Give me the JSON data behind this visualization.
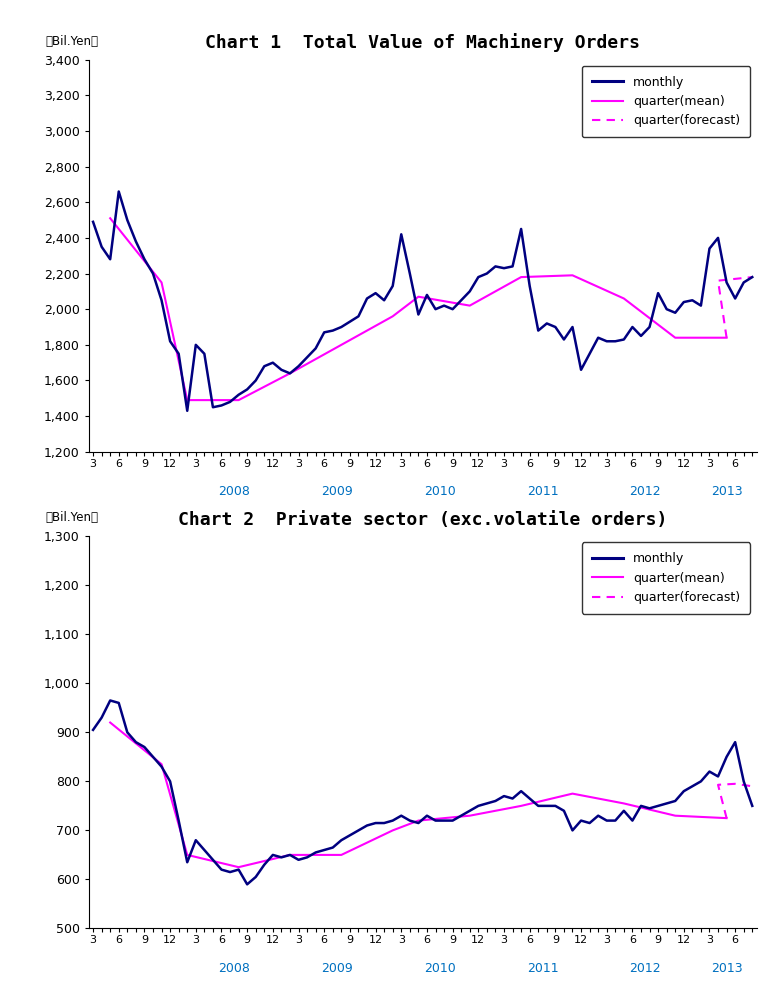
{
  "chart1_title": "Chart 1  Total Value of Machinery Orders",
  "chart2_title": "Chart 2  Private sector (exc.volatile orders)",
  "ylabel": "（Bil.Yen）",
  "chart1_monthly": [
    2490,
    2350,
    2280,
    2660,
    2500,
    2380,
    2280,
    2200,
    2050,
    1820,
    1750,
    1430,
    1800,
    1750,
    1450,
    1460,
    1480,
    1520,
    1550,
    1600,
    1680,
    1700,
    1660,
    1640,
    1680,
    1730,
    1780,
    1870,
    1880,
    1900,
    1930,
    1960,
    2060,
    2090,
    2050,
    2130,
    2420,
    2200,
    1970,
    2080,
    2000,
    2020,
    2000,
    2050,
    2100,
    2180,
    2200,
    2240,
    2230,
    2240,
    2450,
    2130,
    1880,
    1920,
    1900,
    1830,
    1900,
    1660,
    1750,
    1840,
    1820,
    1820,
    1830,
    1900,
    1850,
    1900,
    2090,
    2000,
    1980,
    2040,
    2050,
    2020,
    2340,
    2400,
    2150,
    2060,
    2150,
    2180
  ],
  "chart1_quarter_mean": [
    null,
    null,
    2510,
    null,
    null,
    null,
    null,
    null,
    2150,
    null,
    null,
    1490,
    null,
    null,
    null,
    null,
    null,
    1490,
    null,
    null,
    null,
    null,
    null,
    1640,
    null,
    null,
    null,
    null,
    null,
    1800,
    null,
    null,
    null,
    null,
    null,
    1960,
    null,
    null,
    2070,
    null,
    null,
    null,
    null,
    null,
    2020,
    null,
    null,
    null,
    null,
    null,
    2180,
    null,
    null,
    null,
    null,
    null,
    2190,
    null,
    null,
    null,
    null,
    null,
    2060,
    null,
    null,
    null,
    null,
    null,
    1840,
    null,
    null,
    null,
    null,
    null,
    1840,
    null,
    null,
    null
  ],
  "chart1_quarter_forecast": [
    null,
    null,
    null,
    null,
    null,
    null,
    null,
    null,
    null,
    null,
    null,
    null,
    null,
    null,
    null,
    null,
    null,
    null,
    null,
    null,
    null,
    null,
    null,
    null,
    null,
    null,
    null,
    null,
    null,
    null,
    null,
    null,
    null,
    null,
    null,
    null,
    null,
    null,
    null,
    null,
    null,
    null,
    null,
    null,
    null,
    null,
    null,
    null,
    null,
    null,
    null,
    null,
    null,
    null,
    null,
    null,
    null,
    null,
    null,
    null,
    null,
    null,
    null,
    null,
    null,
    null,
    null,
    null,
    null,
    null,
    null,
    null,
    null,
    2160,
    null,
    2170,
    null,
    2180
  ],
  "chart2_monthly": [
    905,
    930,
    965,
    960,
    900,
    880,
    870,
    850,
    830,
    800,
    720,
    635,
    680,
    660,
    640,
    620,
    615,
    620,
    590,
    605,
    630,
    650,
    645,
    650,
    640,
    645,
    655,
    660,
    665,
    680,
    690,
    700,
    710,
    715,
    715,
    720,
    730,
    720,
    715,
    730,
    720,
    720,
    720,
    730,
    740,
    750,
    755,
    760,
    770,
    765,
    780,
    765,
    750,
    750,
    750,
    740,
    700,
    720,
    715,
    730,
    720,
    720,
    740,
    720,
    750,
    745,
    750,
    755,
    760,
    780,
    790,
    800,
    820,
    810,
    850,
    880,
    800,
    750
  ],
  "chart2_quarter_mean": [
    null,
    null,
    920,
    null,
    null,
    null,
    null,
    null,
    835,
    null,
    null,
    650,
    null,
    null,
    null,
    null,
    null,
    625,
    null,
    null,
    null,
    null,
    null,
    650,
    null,
    null,
    null,
    null,
    null,
    650,
    null,
    null,
    null,
    null,
    null,
    700,
    null,
    null,
    720,
    null,
    null,
    null,
    null,
    null,
    730,
    null,
    null,
    null,
    null,
    null,
    750,
    null,
    null,
    null,
    null,
    null,
    775,
    null,
    null,
    null,
    null,
    null,
    755,
    null,
    null,
    null,
    null,
    null,
    730,
    null,
    null,
    null,
    null,
    null,
    725,
    null,
    null,
    null
  ],
  "chart2_quarter_forecast": [
    null,
    null,
    null,
    null,
    null,
    null,
    null,
    null,
    null,
    null,
    null,
    null,
    null,
    null,
    null,
    null,
    null,
    null,
    null,
    null,
    null,
    null,
    null,
    null,
    null,
    null,
    null,
    null,
    null,
    null,
    null,
    null,
    null,
    null,
    null,
    null,
    null,
    null,
    null,
    null,
    null,
    null,
    null,
    null,
    null,
    null,
    null,
    null,
    null,
    null,
    null,
    null,
    null,
    null,
    null,
    null,
    null,
    null,
    null,
    null,
    null,
    null,
    null,
    null,
    null,
    null,
    null,
    null,
    null,
    null,
    null,
    null,
    null,
    793,
    null,
    795,
    null,
    790
  ],
  "chart1_ylim": [
    1200,
    3400
  ],
  "chart1_yticks": [
    1200,
    1400,
    1600,
    1800,
    2000,
    2200,
    2400,
    2600,
    2800,
    3000,
    3200,
    3400
  ],
  "chart2_ylim": [
    500,
    1300
  ],
  "chart2_yticks": [
    500,
    600,
    700,
    800,
    900,
    1000,
    1100,
    1200,
    1300
  ],
  "monthly_color": "#000080",
  "quarter_mean_color1": "#FF00FF",
  "quarter_mean_color2": "#FF00FF",
  "forecast_color1": "#FF00FF",
  "forecast_color2": "#FF00FF",
  "background_color": "#FFFFFF",
  "year_label_color": "#0070C0",
  "legend_monthly": "monthly",
  "legend_quarter_mean": "quarter(mean)",
  "legend_quarter_forecast": "quarter(forecast)",
  "title1_fontsize": 13,
  "title2_fontsize": 13,
  "tick_fontsize": 8,
  "ylabel_fontsize": 8,
  "legend_fontsize": 9
}
